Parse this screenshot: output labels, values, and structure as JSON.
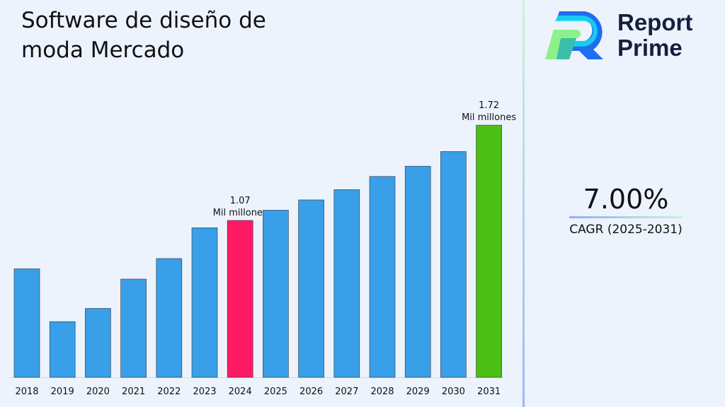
{
  "title": "Software de diseño de moda Mercado",
  "logo": {
    "line1": "Report",
    "line2": "Prime"
  },
  "cagr": {
    "value": "7.00%",
    "label": "CAGR (2025-2031)"
  },
  "colors": {
    "default_bar": "#389fe8",
    "highlight_2024": "#fc1a65",
    "highlight_2031": "#4bbf13"
  },
  "chart_data": {
    "type": "bar",
    "title": "Software de diseño de moda Mercado",
    "categories": [
      "2018",
      "2019",
      "2020",
      "2021",
      "2022",
      "2023",
      "2024",
      "2025",
      "2026",
      "2027",
      "2028",
      "2029",
      "2030",
      "2031"
    ],
    "values": [
      0.74,
      0.38,
      0.47,
      0.67,
      0.81,
      1.02,
      1.07,
      1.14,
      1.21,
      1.28,
      1.37,
      1.44,
      1.54,
      1.72
    ],
    "ylim": [
      0,
      1.9
    ],
    "grid": false,
    "annotations": [
      {
        "category": "2024",
        "value": "1.07",
        "unit": "Mil millones"
      },
      {
        "category": "2031",
        "value": "1.72",
        "unit": "Mil millones"
      }
    ]
  }
}
